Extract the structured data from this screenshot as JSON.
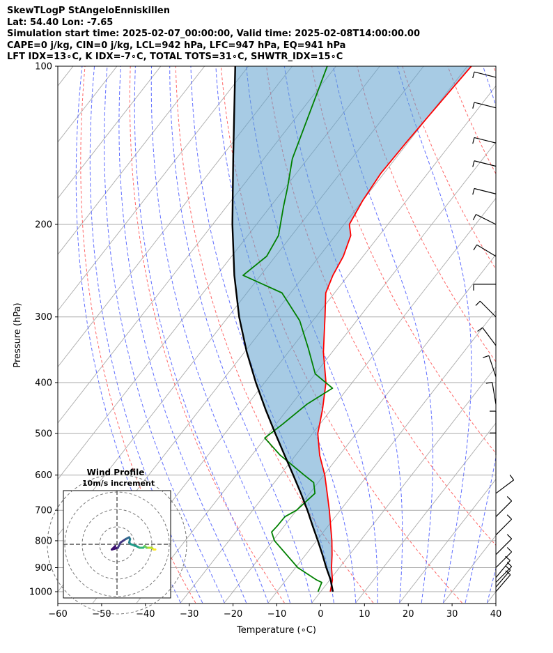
{
  "header": {
    "line1": "SkewTLogP StAngeloEnniskillen",
    "line2": "Lat: 54.40   Lon: -7.65",
    "line3": "Simulation start time: 2025-02-07_00:00:00, Valid time: 2025-02-08T14:00:00.00",
    "line4": "CAPE=0 j/kg, CIN=0 j/kg, LCL=942 hPa, LFC=947 hPa, EQ=941 hPa",
    "line5": "LFT IDX=13∘C, K IDX=-7∘C, TOTAL TOTS=31∘C, SHWTR_IDX=15∘C"
  },
  "chart_data": {
    "type": "line",
    "subtype": "skew-t log-p",
    "xlabel": "Temperature (∘C)",
    "ylabel": "Pressure (hPa)",
    "xlim": [
      -60,
      40
    ],
    "ylim": [
      1050,
      100
    ],
    "x_ticks": [
      "−60",
      "−50",
      "−40",
      "−30",
      "−20",
      "−10",
      "0",
      "10",
      "20",
      "30",
      "40"
    ],
    "x_tick_values": [
      -60,
      -50,
      -40,
      -30,
      -20,
      -10,
      0,
      10,
      20,
      30,
      40
    ],
    "y_ticks": [
      "100",
      "200",
      "300",
      "400",
      "500",
      "600",
      "700",
      "800",
      "900",
      "1000"
    ],
    "y_tick_values": [
      100,
      200,
      300,
      400,
      500,
      600,
      700,
      800,
      900,
      1000
    ],
    "series": [
      {
        "name": "Temperature",
        "color": "#ff0000",
        "points": [
          [
            1000,
            2.2
          ],
          [
            950,
            0.6
          ],
          [
            900,
            -1.8
          ],
          [
            850,
            -4.0
          ],
          [
            800,
            -6.5
          ],
          [
            750,
            -9.4
          ],
          [
            700,
            -12.5
          ],
          [
            650,
            -16.0
          ],
          [
            600,
            -19.8
          ],
          [
            550,
            -24.5
          ],
          [
            500,
            -28.8
          ],
          [
            450,
            -32.0
          ],
          [
            400,
            -36.0
          ],
          [
            350,
            -42.0
          ],
          [
            300,
            -47.9
          ],
          [
            270,
            -52.0
          ],
          [
            250,
            -53.5
          ],
          [
            230,
            -54.5
          ],
          [
            210,
            -56.5
          ],
          [
            200,
            -58.8
          ],
          [
            180,
            -60.0
          ],
          [
            160,
            -60.7
          ],
          [
            140,
            -60.4
          ],
          [
            125,
            -60.0
          ],
          [
            110,
            -59.5
          ],
          [
            100,
            -59.1
          ]
        ]
      },
      {
        "name": "Dewpoint",
        "color": "#008000",
        "points": [
          [
            1000,
            -0.6
          ],
          [
            960,
            -1.4
          ],
          [
            950,
            -3.0
          ],
          [
            900,
            -9.5
          ],
          [
            800,
            -19.6
          ],
          [
            770,
            -21.8
          ],
          [
            750,
            -21.6
          ],
          [
            720,
            -21.5
          ],
          [
            700,
            -20.0
          ],
          [
            650,
            -18.8
          ],
          [
            620,
            -21.0
          ],
          [
            600,
            -24.5
          ],
          [
            550,
            -33.5
          ],
          [
            510,
            -40.1
          ],
          [
            480,
            -38.5
          ],
          [
            440,
            -36.5
          ],
          [
            410,
            -33.5
          ],
          [
            385,
            -40.0
          ],
          [
            345,
            -46.0
          ],
          [
            305,
            -53.0
          ],
          [
            270,
            -62.0
          ],
          [
            250,
            -74.0
          ],
          [
            230,
            -72.0
          ],
          [
            210,
            -73.0
          ],
          [
            185,
            -77.0
          ],
          [
            170,
            -79.5
          ],
          [
            150,
            -83.5
          ],
          [
            130,
            -86.5
          ],
          [
            100,
            -92.0
          ]
        ]
      },
      {
        "name": "Parcel",
        "color": "#000000",
        "points": [
          [
            1000,
            2.8
          ],
          [
            950,
            0.2
          ],
          [
            900,
            -3.0
          ],
          [
            850,
            -6.2
          ],
          [
            800,
            -9.7
          ],
          [
            750,
            -13.5
          ],
          [
            700,
            -17.5
          ],
          [
            650,
            -22.0
          ],
          [
            600,
            -27.0
          ],
          [
            550,
            -32.5
          ],
          [
            500,
            -38.5
          ],
          [
            450,
            -45.0
          ],
          [
            400,
            -52.0
          ],
          [
            350,
            -59.5
          ],
          [
            300,
            -67.5
          ],
          [
            250,
            -76.0
          ],
          [
            200,
            -85.5
          ],
          [
            150,
            -97.0
          ],
          [
            100,
            -113.0
          ]
        ]
      }
    ],
    "wind_barbs": [
      {
        "pressure": 1000,
        "u": -6,
        "v": 7
      },
      {
        "pressure": 980,
        "u": -6,
        "v": 7
      },
      {
        "pressure": 960,
        "u": -6,
        "v": 6
      },
      {
        "pressure": 940,
        "u": -5,
        "v": 6
      },
      {
        "pressure": 900,
        "u": -4,
        "v": 4
      },
      {
        "pressure": 850,
        "u": -4,
        "v": 4
      },
      {
        "pressure": 780,
        "u": -4,
        "v": 4
      },
      {
        "pressure": 720,
        "u": -4,
        "v": 4
      },
      {
        "pressure": 650,
        "u": -4,
        "v": 3
      },
      {
        "pressure": 550,
        "u": 0,
        "v": 4
      },
      {
        "pressure": 500,
        "u": 0,
        "v": 5
      },
      {
        "pressure": 440,
        "u": 1,
        "v": 6
      },
      {
        "pressure": 390,
        "u": 2,
        "v": 6
      },
      {
        "pressure": 340,
        "u": 3,
        "v": 4
      },
      {
        "pressure": 300,
        "u": 4,
        "v": 4
      },
      {
        "pressure": 260,
        "u": 4,
        "v": 0
      },
      {
        "pressure": 230,
        "u": 5,
        "v": 3
      },
      {
        "pressure": 200,
        "u": 4,
        "v": 2
      },
      {
        "pressure": 175,
        "u": 4,
        "v": 1
      },
      {
        "pressure": 155,
        "u": 4,
        "v": 1
      },
      {
        "pressure": 140,
        "u": 4,
        "v": 1
      },
      {
        "pressure": 120,
        "u": 4,
        "v": 1
      },
      {
        "pressure": 105,
        "u": 4,
        "v": 1
      }
    ],
    "hodograph": {
      "title": "Wind Profile",
      "subtitle": "10m/s increment",
      "rings_ms": [
        10,
        20,
        30,
        40
      ],
      "points": [
        [
          -1,
          1
        ],
        [
          -3,
          3
        ],
        [
          0.5,
          2
        ],
        [
          2,
          -1
        ],
        [
          5,
          -3
        ],
        [
          7,
          -4
        ],
        [
          7.5,
          -3
        ],
        [
          7,
          -1
        ],
        [
          8,
          0
        ],
        [
          11,
          1
        ],
        [
          13,
          2
        ],
        [
          15,
          2
        ],
        [
          16,
          1
        ],
        [
          17,
          2
        ],
        [
          18,
          2
        ],
        [
          20,
          2
        ],
        [
          21,
          3
        ],
        [
          22,
          3
        ]
      ]
    }
  }
}
